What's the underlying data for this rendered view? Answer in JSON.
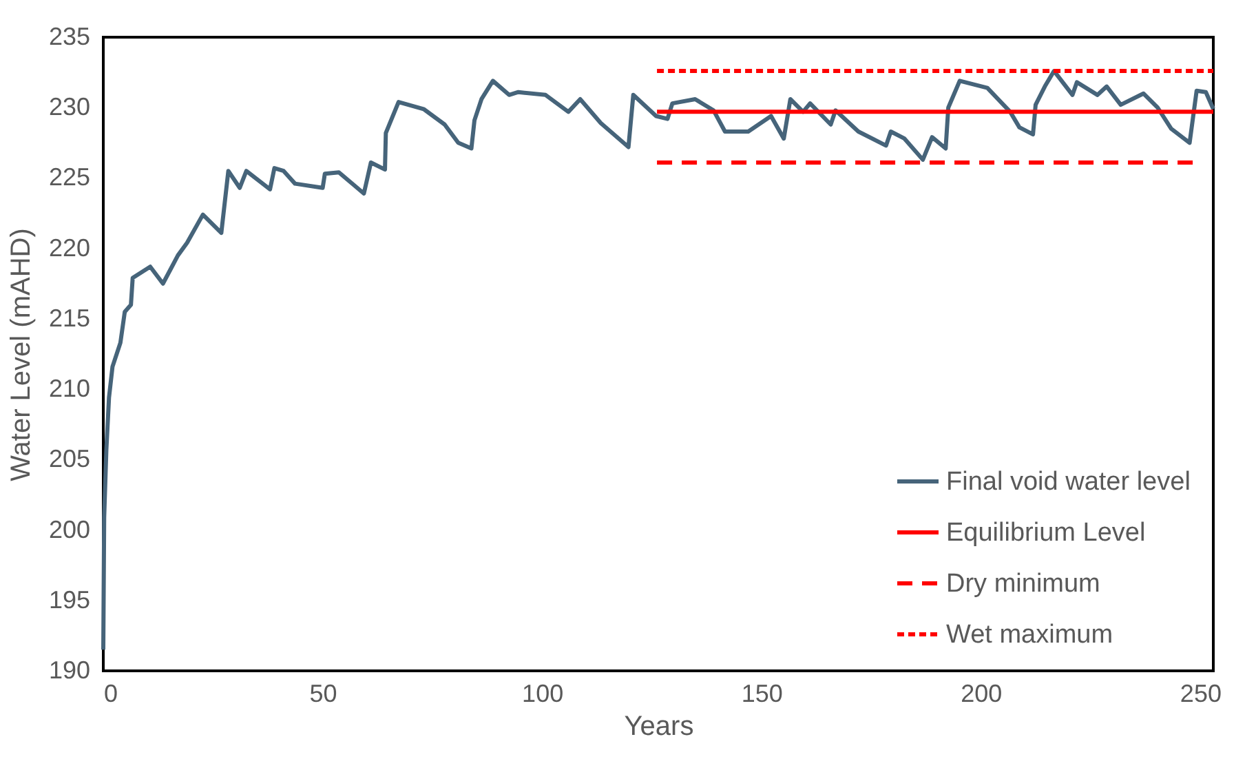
{
  "chart_data": {
    "type": "line",
    "xlabel": "Years",
    "ylabel": "Water Level (mAHD)",
    "xlim": [
      0,
      253
    ],
    "ylim": [
      190,
      235
    ],
    "xticks": [
      0,
      50,
      100,
      150,
      200,
      250
    ],
    "yticks": [
      190,
      195,
      200,
      205,
      210,
      215,
      220,
      225,
      230,
      235
    ],
    "grid": false,
    "legend": "bottom right",
    "marker": "none",
    "series": [
      {
        "name": "Final void water level",
        "color": "#46647a",
        "line_style": "solid",
        "x": [
          0,
          0.2,
          0.7,
          1.3,
          2.1,
          3.9,
          4.9,
          6.3,
          6.7,
          10.7,
          13.6,
          17,
          19.1,
          22.7,
          26.9,
          28.5,
          31.1,
          32.6,
          38,
          39,
          41.1,
          43.7,
          50,
          50.5,
          53.7,
          59.4,
          61,
          64.2,
          64.4,
          67.3,
          73,
          77.8,
          80.9,
          83.9,
          84.6,
          86.2,
          88.8,
          92.5,
          94.6,
          100.8,
          106,
          108.7,
          113.4,
          119.7,
          120.8,
          126,
          128.6,
          129.7,
          134.9,
          139.1,
          141.7,
          147,
          152.2,
          155.1,
          156.6,
          159.5,
          161.1,
          165.8,
          166.9,
          172.1,
          178.4,
          179.5,
          182.6,
          186.8,
          188.9,
          192,
          192.6,
          195.2,
          201.5,
          206.7,
          208.8,
          211.9,
          212.5,
          214.6,
          216.7,
          220.9,
          221.9,
          226.6,
          228.7,
          231.9,
          237.1,
          240.3,
          243.4,
          247.6,
          249.2,
          251.3,
          253
        ],
        "values": [
          191.5,
          200.9,
          205.7,
          209.4,
          211.6,
          213.3,
          215.5,
          216,
          217.9,
          218.7,
          217.5,
          219.5,
          220.4,
          222.4,
          221.1,
          225.5,
          224.3,
          225.5,
          224.2,
          225.7,
          225.5,
          224.6,
          224.3,
          225.3,
          225.4,
          223.9,
          226.1,
          225.6,
          228.2,
          230.4,
          229.9,
          228.8,
          227.5,
          227.1,
          229.1,
          230.6,
          231.9,
          230.9,
          231.1,
          230.9,
          229.7,
          230.6,
          228.9,
          227.2,
          230.9,
          229.4,
          229.2,
          230.3,
          230.6,
          229.8,
          228.3,
          228.3,
          229.4,
          227.8,
          230.6,
          229.7,
          230.3,
          228.8,
          229.8,
          228.3,
          227.3,
          228.3,
          227.8,
          226.3,
          227.9,
          227.1,
          230,
          231.9,
          231.4,
          229.7,
          228.6,
          228.1,
          230.2,
          231.5,
          232.6,
          230.9,
          231.8,
          230.9,
          231.5,
          230.2,
          231,
          230,
          228.5,
          227.5,
          231.2,
          231.1,
          229.9
        ]
      },
      {
        "name": "Equilibrium Level",
        "color": "#ff0000",
        "line_style": "solid",
        "x": [
          126.2,
          253
        ],
        "values": [
          229.7,
          229.7
        ]
      },
      {
        "name": "Dry minimum",
        "color": "#ff0000",
        "line_style": "dashed",
        "x": [
          126.2,
          249
        ],
        "values": [
          226.1,
          226.1
        ]
      },
      {
        "name": "Wet maximum",
        "color": "#ff0000",
        "line_style": "dotted",
        "x": [
          126.2,
          253
        ],
        "values": [
          232.6,
          232.6
        ]
      }
    ]
  }
}
